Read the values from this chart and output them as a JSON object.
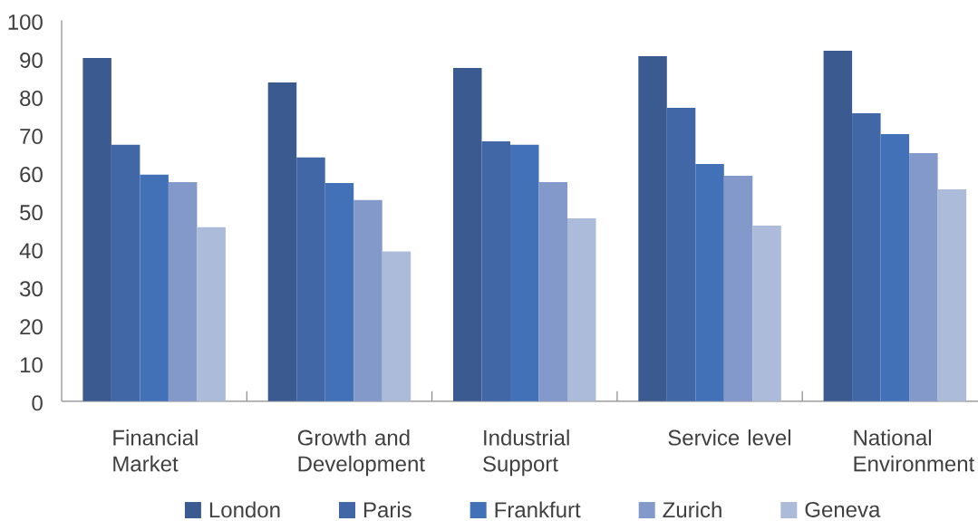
{
  "chart_data": {
    "type": "bar",
    "categories": [
      "Financial Market",
      "Growth and Development",
      "Industrial Support",
      "Service level",
      "National Environment"
    ],
    "series": [
      {
        "name": "London",
        "color": "#3b5a8f",
        "values": [
          90.1,
          83.7,
          87.5,
          90.6,
          92.0
        ]
      },
      {
        "name": "Paris",
        "color": "#4267a7",
        "values": [
          67.3,
          64.0,
          68.2,
          77.0,
          75.6
        ]
      },
      {
        "name": "Frankfurt",
        "color": "#4371b8",
        "values": [
          59.5,
          57.3,
          67.3,
          62.3,
          70.1
        ]
      },
      {
        "name": "Zurich",
        "color": "#8299c9",
        "values": [
          57.5,
          52.8,
          57.5,
          59.2,
          65.1
        ]
      },
      {
        "name": "Geneva",
        "color": "#adbbda",
        "values": [
          45.7,
          39.3,
          48.0,
          46.1,
          55.6
        ]
      }
    ],
    "ylim": [
      0,
      100
    ],
    "yticks": [
      0,
      10,
      20,
      30,
      40,
      50,
      60,
      70,
      80,
      90,
      100
    ],
    "legend": "bottom"
  }
}
